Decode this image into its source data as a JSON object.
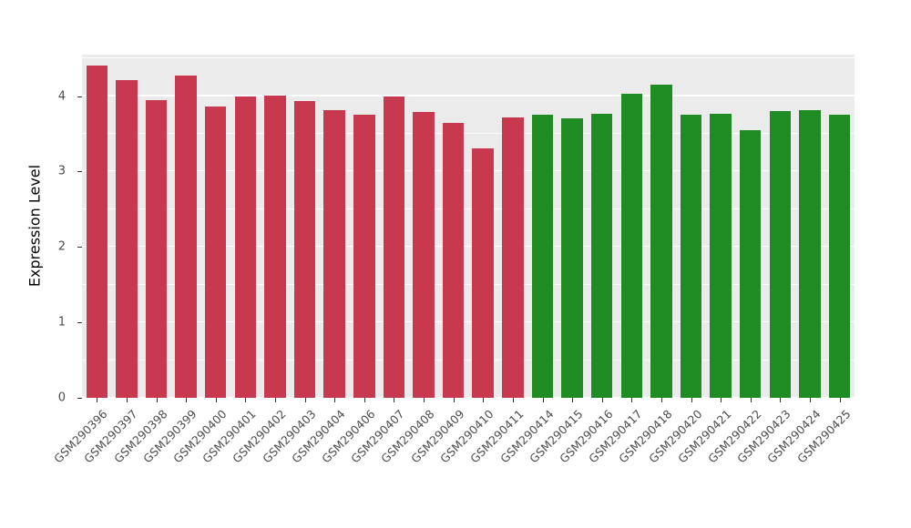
{
  "chart_data": {
    "type": "bar",
    "title": "",
    "xlabel": "",
    "ylabel": "Expression Level",
    "ylim": [
      0,
      4.55
    ],
    "yticks": [
      0,
      1,
      2,
      3,
      4
    ],
    "minor_ticks": [
      0.5,
      1.5,
      2.5,
      3.5,
      4.5
    ],
    "grid": true,
    "legend_position": "none",
    "panel_background": "#EBEBEB",
    "grid_color": "#FFFFFF",
    "categories": [
      "GSM290396",
      "GSM290397",
      "GSM290398",
      "GSM290399",
      "GSM290400",
      "GSM290401",
      "GSM290402",
      "GSM290403",
      "GSM290404",
      "GSM290406",
      "GSM290407",
      "GSM290408",
      "GSM290409",
      "GSM290410",
      "GSM290411",
      "GSM290414",
      "GSM290415",
      "GSM290416",
      "GSM290417",
      "GSM290418",
      "GSM290420",
      "GSM290421",
      "GSM290422",
      "GSM290423",
      "GSM290424",
      "GSM290425"
    ],
    "values": [
      4.4,
      4.21,
      3.95,
      4.27,
      3.86,
      3.99,
      4.01,
      3.93,
      3.81,
      3.75,
      3.99,
      3.79,
      3.65,
      3.31,
      3.72,
      3.75,
      3.71,
      3.76,
      4.03,
      4.15,
      3.75,
      3.76,
      3.55,
      3.8,
      3.82,
      3.75
    ],
    "groups": [
      "group1",
      "group1",
      "group1",
      "group1",
      "group1",
      "group1",
      "group1",
      "group1",
      "group1",
      "group1",
      "group1",
      "group1",
      "group1",
      "group1",
      "group1",
      "group2",
      "group2",
      "group2",
      "group2",
      "group2",
      "group2",
      "group2",
      "group2",
      "group2",
      "group2",
      "group2"
    ],
    "group_colors": {
      "group1": "#C8384F",
      "group2": "#1E8C22"
    }
  }
}
